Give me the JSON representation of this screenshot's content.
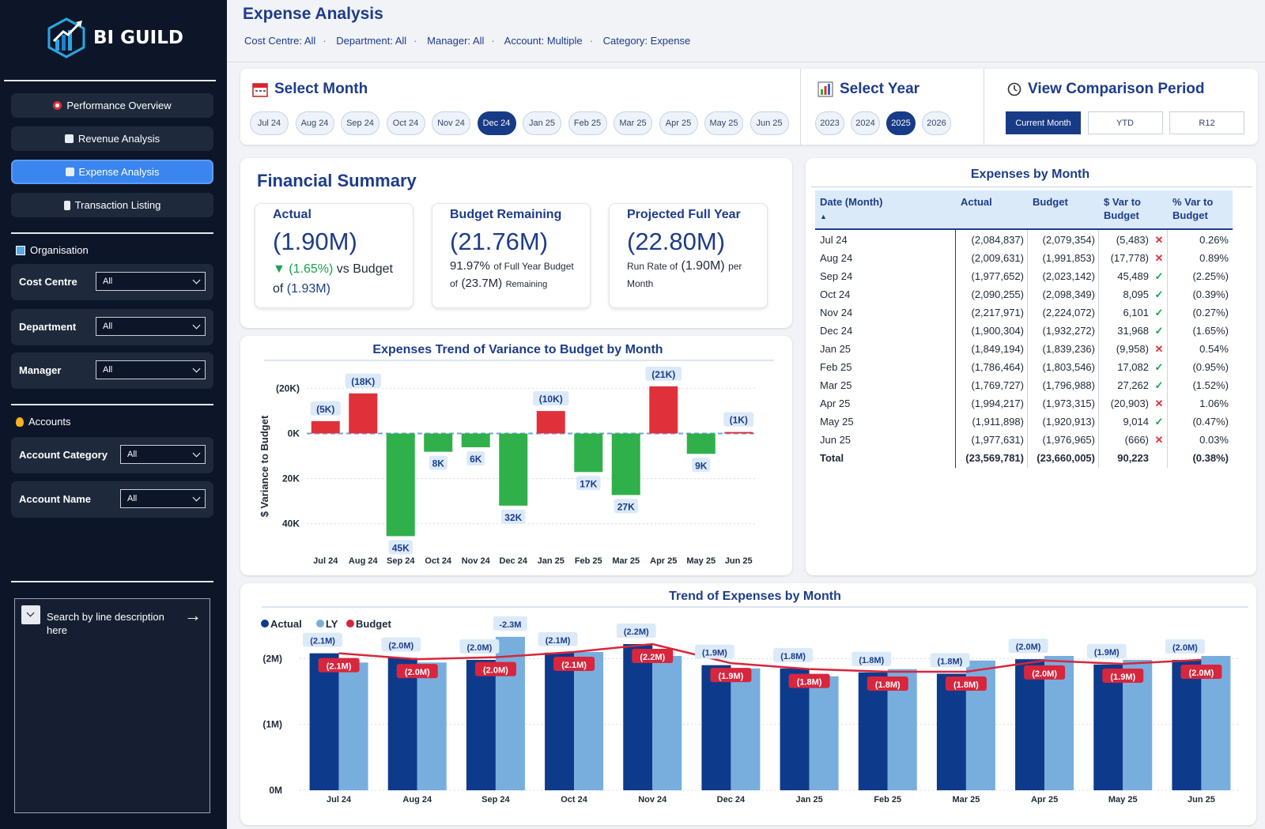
{
  "brand": {
    "name": "BI GUILD"
  },
  "nav": [
    {
      "label": "Performance Overview",
      "active": false
    },
    {
      "label": "Revenue Analysis",
      "active": false
    },
    {
      "label": "Expense Analysis",
      "active": true
    },
    {
      "label": "Transaction Listing",
      "active": false
    }
  ],
  "organisation": {
    "heading": "Organisation",
    "filters": [
      {
        "label": "Cost Centre",
        "value": "All"
      },
      {
        "label": "Department",
        "value": "All"
      },
      {
        "label": "Manager",
        "value": "All"
      }
    ]
  },
  "accounts": {
    "heading": "Accounts",
    "filters": [
      {
        "label": "Account Category",
        "value": "All"
      },
      {
        "label": "Account Name",
        "value": "All"
      }
    ]
  },
  "search": {
    "placeholder": "Search by line description here"
  },
  "page": {
    "title": "Expense Analysis",
    "crumbs": [
      "Cost Centre: All",
      "Department: All",
      "Manager: All",
      "Account: Multiple",
      "Category: Expense"
    ]
  },
  "select_month": {
    "title": "Select Month",
    "options": [
      "Jul 24",
      "Aug 24",
      "Sep 24",
      "Oct 24",
      "Nov 24",
      "Dec 24",
      "Jan 25",
      "Feb 25",
      "Mar 25",
      "Apr 25",
      "May 25",
      "Jun 25"
    ],
    "selected": "Dec 24"
  },
  "select_year": {
    "title": "Select Year",
    "options": [
      "2023",
      "2024",
      "2025",
      "2026"
    ],
    "selected": "2025"
  },
  "comparison": {
    "title": "View Comparison Period",
    "options": [
      "Current Month",
      "YTD",
      "R12"
    ],
    "selected": "Current Month"
  },
  "summary": {
    "title": "Financial Summary",
    "actual": {
      "label": "Actual",
      "value": "(1.90M)",
      "variance": "(1.65%)",
      "vs": "vs Budget",
      "of": "of",
      "budget": "(1.93M)"
    },
    "remaining": {
      "label": "Budget Remaining",
      "value": "(21.76M)",
      "pct": "91.97%",
      "text1": "of Full Year Budget",
      "of": "of",
      "budget": "(23.7M)",
      "text2": "Remaining"
    },
    "projected": {
      "label": "Projected Full Year",
      "value": "(22.80M)",
      "text1": "Run Rate of",
      "rate": "(1.90M)",
      "text2": "per",
      "text3": "Month"
    }
  },
  "expenses_table": {
    "title": "Expenses by Month",
    "headers": [
      "Date (Month)",
      "Actual",
      "Budget",
      "$ Var to Budget",
      "% Var to Budget"
    ],
    "rows": [
      {
        "month": "Jul 24",
        "actual": "(2,084,837)",
        "budget": "(2,079,354)",
        "var": "(5,483)",
        "status": "bad",
        "pct": "0.26%"
      },
      {
        "month": "Aug 24",
        "actual": "(2,009,631)",
        "budget": "(1,991,853)",
        "var": "(17,778)",
        "status": "bad",
        "pct": "0.89%"
      },
      {
        "month": "Sep 24",
        "actual": "(1,977,652)",
        "budget": "(2,023,142)",
        "var": "45,489",
        "status": "good",
        "pct": "(2.25%)"
      },
      {
        "month": "Oct 24",
        "actual": "(2,090,255)",
        "budget": "(2,098,349)",
        "var": "8,095",
        "status": "good",
        "pct": "(0.39%)"
      },
      {
        "month": "Nov 24",
        "actual": "(2,217,971)",
        "budget": "(2,224,072)",
        "var": "6,101",
        "status": "good",
        "pct": "(0.27%)"
      },
      {
        "month": "Dec 24",
        "actual": "(1,900,304)",
        "budget": "(1,932,272)",
        "var": "31,968",
        "status": "good",
        "pct": "(1.65%)"
      },
      {
        "month": "Jan 25",
        "actual": "(1,849,194)",
        "budget": "(1,839,236)",
        "var": "(9,958)",
        "status": "bad",
        "pct": "0.54%"
      },
      {
        "month": "Feb 25",
        "actual": "(1,786,464)",
        "budget": "(1,803,546)",
        "var": "17,082",
        "status": "good",
        "pct": "(0.95%)"
      },
      {
        "month": "Mar 25",
        "actual": "(1,769,727)",
        "budget": "(1,796,988)",
        "var": "27,262",
        "status": "good",
        "pct": "(1.52%)"
      },
      {
        "month": "Apr 25",
        "actual": "(1,994,217)",
        "budget": "(1,973,315)",
        "var": "(20,903)",
        "status": "bad",
        "pct": "1.06%"
      },
      {
        "month": "May 25",
        "actual": "(1,911,898)",
        "budget": "(1,920,913)",
        "var": "9,014",
        "status": "good",
        "pct": "(0.47%)"
      },
      {
        "month": "Jun 25",
        "actual": "(1,977,631)",
        "budget": "(1,976,965)",
        "var": "(666)",
        "status": "bad",
        "pct": "0.03%"
      }
    ],
    "total": {
      "label": "Total",
      "actual": "(23,569,781)",
      "budget": "(23,660,005)",
      "var": "90,223",
      "pct": "(0.38%)"
    }
  },
  "chart_data": [
    {
      "type": "bar",
      "title": "Expenses Trend of Variance to Budget by Month",
      "ylabel": "$ Variance to Budget",
      "categories": [
        "Jul 24",
        "Aug 24",
        "Sep 24",
        "Oct 24",
        "Nov 24",
        "Dec 24",
        "Jan 25",
        "Feb 25",
        "Mar 25",
        "Apr 25",
        "May 25",
        "Jun 25"
      ],
      "values": [
        5483,
        17778,
        -45489,
        -8095,
        -6101,
        -31968,
        9958,
        -17082,
        -27262,
        20903,
        -9014,
        666
      ],
      "data_labels": [
        "(5K)",
        "(18K)",
        "45K",
        "8K",
        "6K",
        "32K",
        "(10K)",
        "17K",
        "27K",
        "(21K)",
        "9K",
        "(1K)"
      ],
      "yticks": [
        {
          "v": 20000,
          "label": "(20K)"
        },
        {
          "v": 0,
          "label": "0K"
        },
        {
          "v": -20000,
          "label": "20K"
        },
        {
          "v": -40000,
          "label": "40K"
        }
      ],
      "ylim": [
        -52000,
        24000
      ],
      "colors": {
        "over": "#e0313b",
        "under": "#2fb04b"
      }
    },
    {
      "type": "bar",
      "title": "Trend of Expenses by Month",
      "categories": [
        "Jul 24",
        "Aug 24",
        "Sep 24",
        "Oct 24",
        "Nov 24",
        "Dec 24",
        "Jan 25",
        "Feb 25",
        "Mar 25",
        "Apr 25",
        "May 25",
        "Jun 25"
      ],
      "series": [
        {
          "name": "Actual",
          "color": "#0e3a8c",
          "values": [
            2.08,
            2.01,
            1.98,
            2.09,
            2.22,
            1.9,
            1.85,
            1.79,
            1.77,
            1.99,
            1.91,
            1.98
          ],
          "labels": [
            "(2.1M)",
            "(2.0M)",
            "(2.0M)",
            "(2.1M)",
            "(2.2M)",
            "(1.9M)",
            "(1.8M)",
            "(1.8M)",
            "(1.8M)",
            "(2.0M)",
            "(1.9M)",
            "(2.0M)"
          ]
        },
        {
          "name": "LY",
          "color": "#78aedd",
          "values": [
            1.94,
            1.94,
            2.33,
            2.1,
            2.04,
            1.85,
            1.73,
            1.84,
            1.97,
            2.04,
            1.98,
            2.04
          ],
          "labels": [
            "",
            "",
            "-2.3M",
            "",
            "",
            "",
            "",
            "",
            "",
            "",
            "",
            ""
          ]
        },
        {
          "name": "Budget",
          "color": "#d7263d",
          "values": [
            2.08,
            1.99,
            2.02,
            2.1,
            2.22,
            1.93,
            1.84,
            1.8,
            1.8,
            1.97,
            1.92,
            1.98
          ],
          "labels": [
            "(2.1M)",
            "(2.0M)",
            "(2.0M)",
            "(2.1M)",
            "(2.2M)",
            "(1.9M)",
            "(1.8M)",
            "(1.8M)",
            "(1.8M)",
            "(2.0M)",
            "(1.9M)",
            "(2.0M)"
          ]
        }
      ],
      "yticks": [
        {
          "v": 2,
          "label": "(2M)"
        },
        {
          "v": 1,
          "label": "(1M)"
        },
        {
          "v": 0,
          "label": "0M"
        }
      ],
      "ylim": [
        0,
        2.4
      ],
      "legend": "top-left"
    }
  ]
}
